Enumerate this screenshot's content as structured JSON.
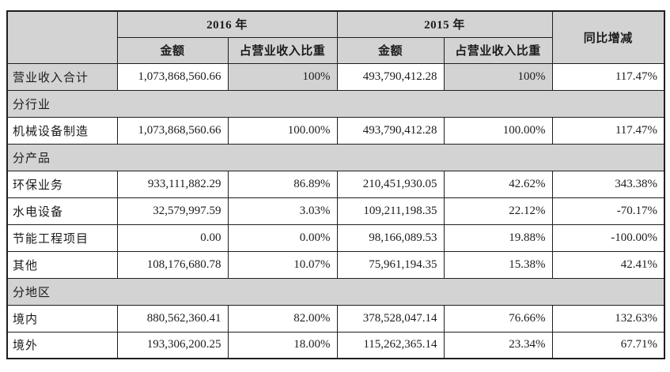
{
  "table": {
    "header": {
      "y2016": "2016 年",
      "y2015": "2015 年",
      "yoy": "同比增减",
      "amount": "金额",
      "ratio": "占营业收入比重"
    },
    "rows": [
      {
        "type": "data",
        "shaded": true,
        "label": "营业收入合计",
        "a16": "1,073,868,560.66",
        "p16": "100%",
        "a15": "493,790,412.28",
        "p15": "100%",
        "yoy": "117.47%"
      },
      {
        "type": "section",
        "label": "分行业"
      },
      {
        "type": "data",
        "shaded": false,
        "label": "机械设备制造",
        "a16": "1,073,868,560.66",
        "p16": "100.00%",
        "a15": "493,790,412.28",
        "p15": "100.00%",
        "yoy": "117.47%"
      },
      {
        "type": "section",
        "label": "分产品"
      },
      {
        "type": "data",
        "shaded": false,
        "label": "环保业务",
        "a16": "933,111,882.29",
        "p16": "86.89%",
        "a15": "210,451,930.05",
        "p15": "42.62%",
        "yoy": "343.38%"
      },
      {
        "type": "data",
        "shaded": false,
        "label": "水电设备",
        "a16": "32,579,997.59",
        "p16": "3.03%",
        "a15": "109,211,198.35",
        "p15": "22.12%",
        "yoy": "-70.17%"
      },
      {
        "type": "data",
        "shaded": false,
        "label": "节能工程项目",
        "a16": "0.00",
        "p16": "0.00%",
        "a15": "98,166,089.53",
        "p15": "19.88%",
        "yoy": "-100.00%"
      },
      {
        "type": "data",
        "shaded": false,
        "label": "其他",
        "a16": "108,176,680.78",
        "p16": "10.07%",
        "a15": "75,961,194.35",
        "p15": "15.38%",
        "yoy": "42.41%"
      },
      {
        "type": "section",
        "label": "分地区"
      },
      {
        "type": "data",
        "shaded": false,
        "label": "境内",
        "a16": "880,562,360.41",
        "p16": "82.00%",
        "a15": "378,528,047.14",
        "p15": "76.66%",
        "yoy": "132.63%"
      },
      {
        "type": "data",
        "shaded": false,
        "label": "境外",
        "a16": "193,306,200.25",
        "p16": "18.00%",
        "a15": "115,262,365.14",
        "p15": "23.34%",
        "yoy": "67.71%"
      }
    ],
    "colors": {
      "header_fill": "#d3d3d3",
      "border": "#1e1e1e",
      "text": "#1c1c1c",
      "cell_fill": "#ffffff"
    }
  }
}
